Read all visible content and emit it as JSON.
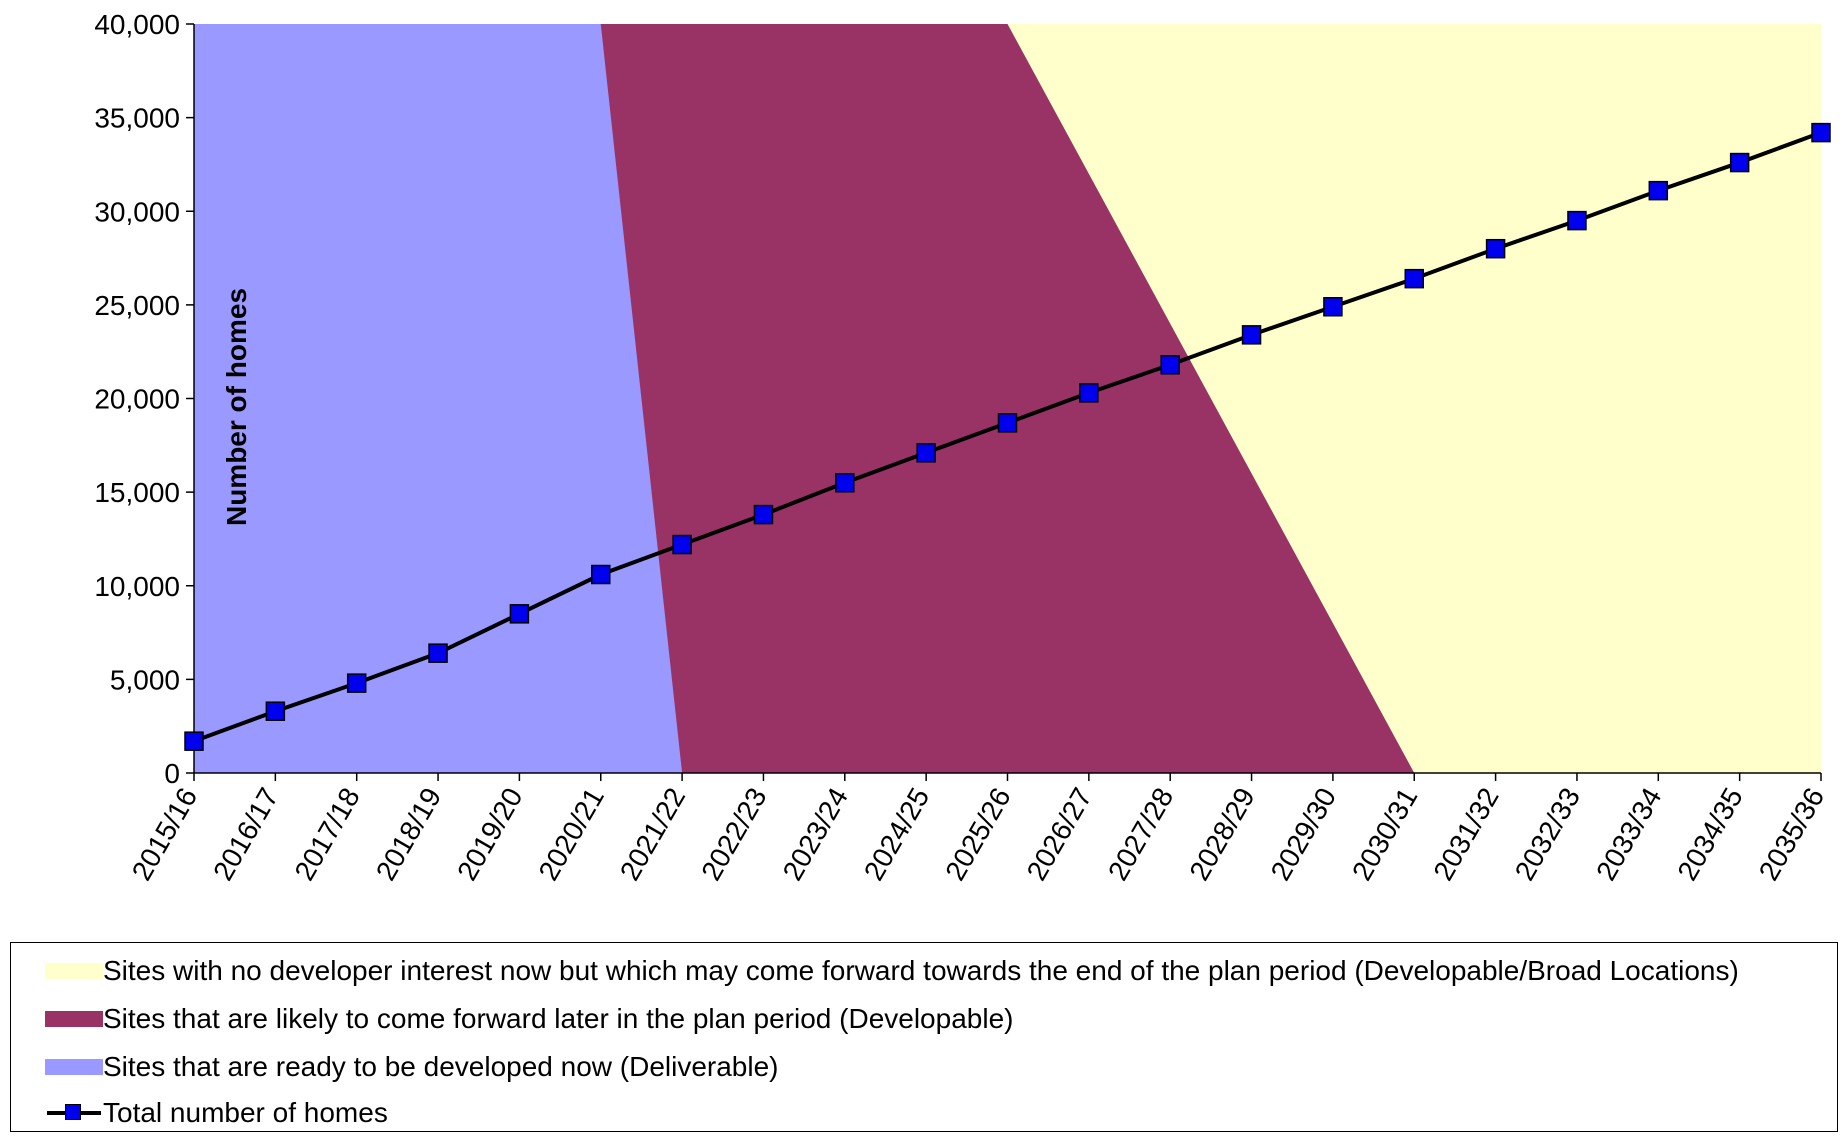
{
  "chart_data": {
    "type": "area",
    "title": "",
    "xlabel": "",
    "ylabel": "Number of homes",
    "ylim": [
      0,
      40000
    ],
    "yticks": [
      "0",
      "5,000",
      "10,000",
      "15,000",
      "20,000",
      "25,000",
      "30,000",
      "35,000",
      "40,000"
    ],
    "ytick_values": [
      0,
      5000,
      10000,
      15000,
      20000,
      25000,
      30000,
      35000,
      40000
    ],
    "categories": [
      "2015/16",
      "2016/17",
      "2017/18",
      "2018/19",
      "2019/20",
      "2020/21",
      "2021/22",
      "2022/23",
      "2023/24",
      "2024/25",
      "2025/26",
      "2026/27",
      "2027/28",
      "2028/29",
      "2029/30",
      "2030/31",
      "2031/32",
      "2032/33",
      "2033/34",
      "2034/35",
      "2035/36"
    ],
    "bands": [
      {
        "name": "Sites with no developer interest now but which may come forward towards the end of the plan period (Developable/Broad Locations)",
        "color": "#ffffcc",
        "boundary": "rest of plot area"
      },
      {
        "name": "Sites that are likely to come forward later in the plan period (Developable)",
        "color": "#993366",
        "boundary_top": "2025/26",
        "boundary_bottom": "2030/31"
      },
      {
        "name": "Sites that are ready to be developed now (Deliverable)",
        "color": "#9999ff",
        "boundary_top": "2020/21",
        "boundary_bottom": "2021/22"
      }
    ],
    "series": [
      {
        "name": "Total number of homes",
        "color": "#0000ee",
        "line_color": "#000000",
        "values": [
          1700,
          3300,
          4800,
          6400,
          8500,
          10600,
          12200,
          13800,
          15500,
          17100,
          18700,
          20300,
          21800,
          23400,
          24900,
          26400,
          28000,
          29500,
          31100,
          32600,
          34200
        ]
      }
    ],
    "grid": false,
    "legend_position": "bottom"
  }
}
